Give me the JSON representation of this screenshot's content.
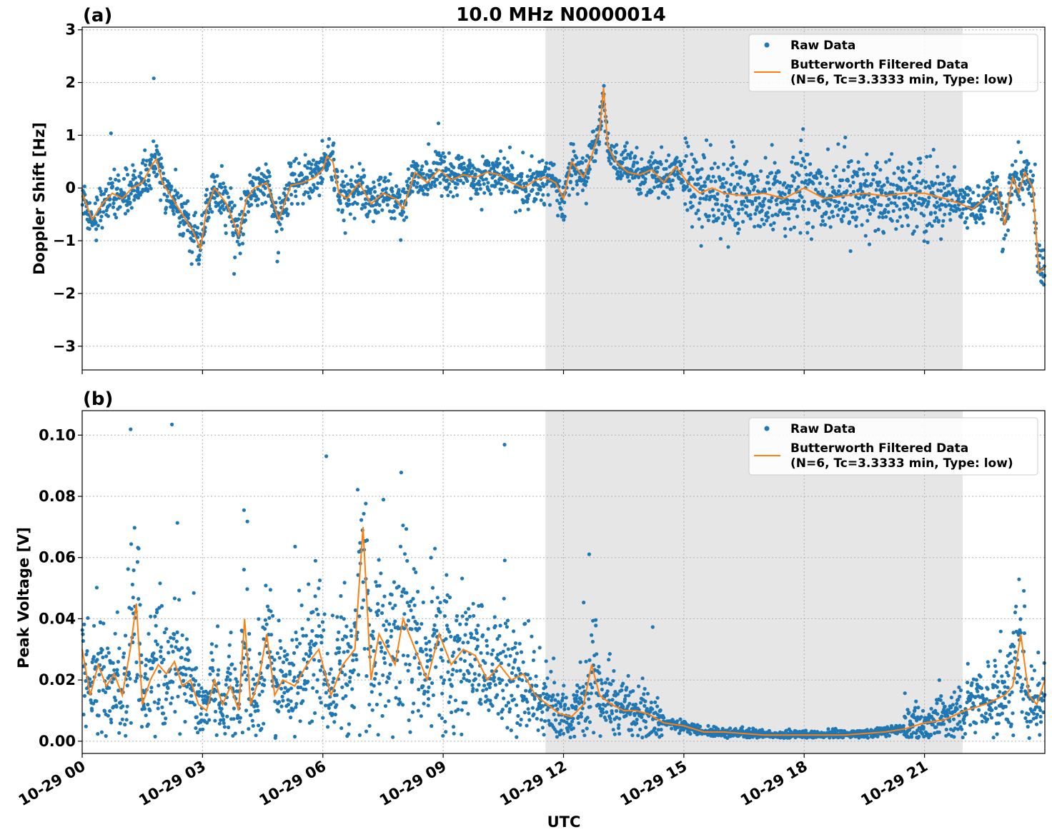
{
  "figure": {
    "title": "10.0 MHz N0000014",
    "xlabel": "UTC",
    "x_tick_labels": [
      "10-29 00",
      "10-29 03",
      "10-29 06",
      "10-29 09",
      "10-29 12",
      "10-29 15",
      "10-29 18",
      "10-29 21"
    ],
    "colors": {
      "raw": "#1f77b4",
      "filtered": "#ff7f0e",
      "shade": "#e6e6e6"
    }
  },
  "chart_data": [
    {
      "type": "scatter",
      "panel_label": "(a)",
      "title": "10.0 MHz N0000014",
      "xlabel": "",
      "ylabel": "Doppler Shift [Hz]",
      "x_unit": "hours UTC on 10-29",
      "xlim": [
        0,
        24
      ],
      "ylim": [
        -3.45,
        3.05
      ],
      "y_ticks": [
        -3,
        -2,
        -1,
        0,
        1,
        2,
        3
      ],
      "y_tick_labels": [
        "−3",
        "−2",
        "−1",
        "0",
        "1",
        "2",
        "3"
      ],
      "grid": true,
      "legend_position": "top-right",
      "shaded_region": [
        11.55,
        21.95
      ],
      "legend": {
        "raw": "Raw Data",
        "filtered_line1": "Butterworth Filtered Data",
        "filtered_line2": "(N=6, Tc=3.3333 min, Type: low)"
      },
      "series": [
        {
          "name": "Butterworth Filtered Data (N=6, Tc=3.3333 min, Type: low)",
          "x": [
            0,
            0.25,
            0.5,
            0.75,
            1.0,
            1.25,
            1.5,
            1.75,
            1.85,
            2.0,
            2.25,
            2.5,
            2.75,
            2.95,
            3.1,
            3.3,
            3.6,
            3.9,
            4.1,
            4.3,
            4.6,
            4.9,
            5.2,
            5.5,
            5.8,
            6.0,
            6.1,
            6.25,
            6.4,
            6.6,
            6.9,
            7.2,
            7.5,
            7.8,
            8.0,
            8.3,
            8.6,
            8.9,
            9.2,
            9.5,
            9.8,
            10.1,
            10.4,
            10.7,
            11.0,
            11.3,
            11.55,
            11.8,
            12.0,
            12.2,
            12.5,
            12.7,
            12.9,
            13.0,
            13.1,
            13.3,
            13.6,
            13.9,
            14.2,
            14.5,
            14.8,
            15.1,
            15.4,
            15.7,
            16.0,
            16.5,
            17.0,
            17.5,
            18.0,
            18.5,
            19.0,
            19.5,
            20.0,
            20.5,
            21.0,
            21.5,
            21.9,
            22.2,
            22.5,
            22.8,
            23.0,
            23.2,
            23.35,
            23.5,
            23.7,
            23.85,
            24.0
          ],
          "y": [
            -0.1,
            -0.6,
            -0.3,
            -0.1,
            -0.2,
            0.0,
            0.1,
            0.45,
            0.55,
            0.1,
            -0.2,
            -0.5,
            -0.8,
            -1.15,
            -0.4,
            0.0,
            -0.3,
            -0.9,
            -0.2,
            0.0,
            0.1,
            -0.6,
            0.05,
            0.1,
            0.2,
            0.35,
            0.6,
            0.5,
            -0.1,
            -0.2,
            0.1,
            -0.3,
            -0.1,
            -0.2,
            -0.4,
            0.3,
            0.1,
            0.35,
            0.15,
            0.25,
            0.2,
            0.3,
            0.25,
            0.1,
            0.0,
            0.15,
            0.2,
            0.1,
            -0.2,
            0.5,
            0.2,
            0.6,
            1.1,
            1.9,
            0.8,
            0.5,
            0.3,
            0.25,
            0.35,
            0.1,
            0.4,
            0.1,
            -0.1,
            0.0,
            -0.1,
            -0.15,
            -0.1,
            -0.2,
            0.0,
            -0.2,
            -0.15,
            -0.1,
            -0.15,
            -0.1,
            -0.1,
            -0.2,
            -0.3,
            -0.4,
            -0.2,
            0.0,
            -0.7,
            0.2,
            -0.1,
            0.3,
            0.0,
            -1.6,
            -1.5
          ]
        }
      ]
    },
    {
      "type": "scatter",
      "panel_label": "(b)",
      "xlabel": "UTC",
      "ylabel": "Peak Voltage [V]",
      "x_unit": "hours UTC on 10-29",
      "xlim": [
        0,
        24
      ],
      "ylim": [
        -0.004,
        0.108
      ],
      "y_ticks": [
        0.0,
        0.02,
        0.04,
        0.06,
        0.08,
        0.1
      ],
      "y_tick_labels": [
        "0.00",
        "0.02",
        "0.04",
        "0.06",
        "0.08",
        "0.10"
      ],
      "grid": true,
      "legend_position": "top-right",
      "shaded_region": [
        11.55,
        21.95
      ],
      "legend": {
        "raw": "Raw Data",
        "filtered_line1": "Butterworth Filtered Data",
        "filtered_line2": "(N=6, Tc=3.3333 min, Type: low)"
      },
      "series": [
        {
          "name": "Butterworth Filtered Data (N=6, Tc=3.3333 min, Type: low)",
          "x": [
            0,
            0.2,
            0.4,
            0.6,
            0.8,
            1.0,
            1.2,
            1.35,
            1.5,
            1.7,
            1.9,
            2.1,
            2.3,
            2.5,
            2.7,
            2.9,
            3.1,
            3.3,
            3.5,
            3.7,
            3.9,
            4.05,
            4.2,
            4.4,
            4.6,
            4.8,
            5.0,
            5.3,
            5.6,
            5.9,
            6.2,
            6.5,
            6.8,
            7.0,
            7.2,
            7.4,
            7.6,
            7.8,
            8.0,
            8.3,
            8.6,
            8.9,
            9.2,
            9.5,
            9.8,
            10.1,
            10.4,
            10.7,
            11.0,
            11.3,
            11.6,
            11.9,
            12.2,
            12.5,
            12.7,
            12.9,
            13.2,
            13.5,
            13.8,
            14.1,
            14.5,
            15.0,
            15.5,
            16.0,
            17.0,
            18.0,
            19.0,
            20.0,
            20.5,
            21.0,
            21.5,
            22.0,
            22.5,
            23.0,
            23.2,
            23.4,
            23.6,
            23.8,
            24.0
          ],
          "y": [
            0.03,
            0.015,
            0.025,
            0.018,
            0.022,
            0.015,
            0.03,
            0.045,
            0.012,
            0.02,
            0.025,
            0.022,
            0.026,
            0.018,
            0.02,
            0.012,
            0.01,
            0.02,
            0.012,
            0.018,
            0.01,
            0.04,
            0.012,
            0.02,
            0.035,
            0.015,
            0.02,
            0.018,
            0.025,
            0.03,
            0.015,
            0.025,
            0.03,
            0.07,
            0.02,
            0.035,
            0.03,
            0.025,
            0.04,
            0.03,
            0.02,
            0.035,
            0.025,
            0.03,
            0.028,
            0.02,
            0.025,
            0.02,
            0.022,
            0.015,
            0.012,
            0.009,
            0.008,
            0.012,
            0.025,
            0.015,
            0.012,
            0.01,
            0.01,
            0.009,
            0.006,
            0.005,
            0.003,
            0.003,
            0.002,
            0.002,
            0.002,
            0.003,
            0.004,
            0.006,
            0.007,
            0.01,
            0.012,
            0.015,
            0.018,
            0.035,
            0.015,
            0.012,
            0.02
          ]
        }
      ]
    }
  ]
}
